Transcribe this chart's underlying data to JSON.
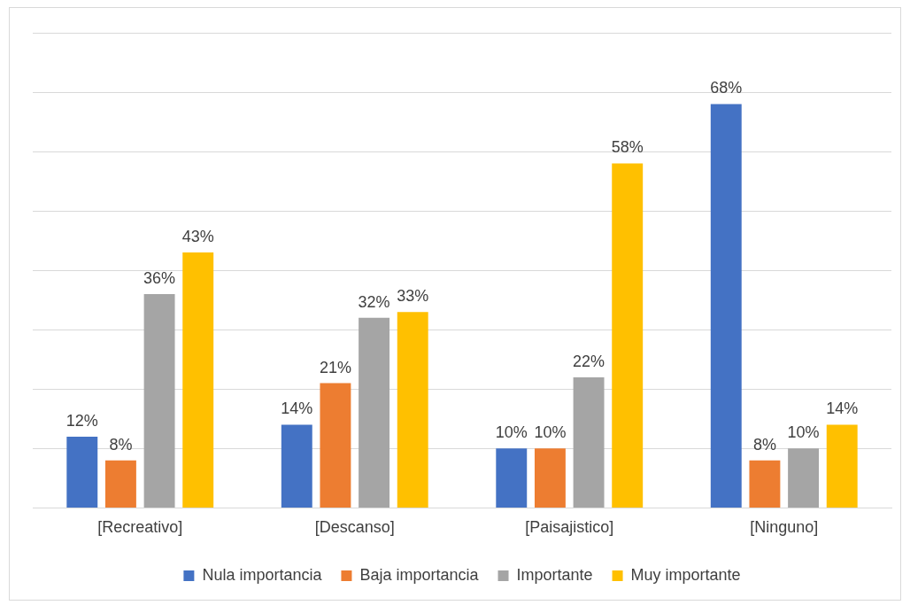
{
  "chart_data": {
    "type": "bar",
    "categories": [
      "[Recreativo]",
      "[Descanso]",
      "[Paisajistico]",
      "[Ninguno]"
    ],
    "series": [
      {
        "name": "Nula importancia",
        "color": "#4472c4",
        "values": [
          12,
          14,
          10,
          68
        ],
        "value_labels": [
          "12%",
          "14%",
          "10%",
          "68%"
        ]
      },
      {
        "name": "Baja importancia",
        "color": "#ed7d31",
        "values": [
          8,
          21,
          10,
          8
        ],
        "value_labels": [
          "8%",
          "21%",
          "10%",
          "8%"
        ]
      },
      {
        "name": "Importante",
        "color": "#a5a5a5",
        "values": [
          36,
          32,
          22,
          10
        ],
        "value_labels": [
          "36%",
          "32%",
          "22%",
          "10%"
        ]
      },
      {
        "name": "Muy importante",
        "color": "#ffc000",
        "values": [
          43,
          33,
          58,
          14
        ],
        "value_labels": [
          "43%",
          "33%",
          "58%",
          "14%"
        ]
      }
    ],
    "ylim": [
      0,
      80
    ],
    "yticks": [
      {
        "value": 0,
        "label": null
      },
      {
        "value": 10,
        "label": null
      },
      {
        "value": 20,
        "label": null
      },
      {
        "value": 30,
        "label": null
      },
      {
        "value": 40,
        "label": null
      },
      {
        "value": 50,
        "label": null
      },
      {
        "value": 60,
        "label": null
      },
      {
        "value": 70,
        "label": null
      },
      {
        "value": 80,
        "label": null
      }
    ],
    "grid": "y",
    "legend": "bottom"
  }
}
